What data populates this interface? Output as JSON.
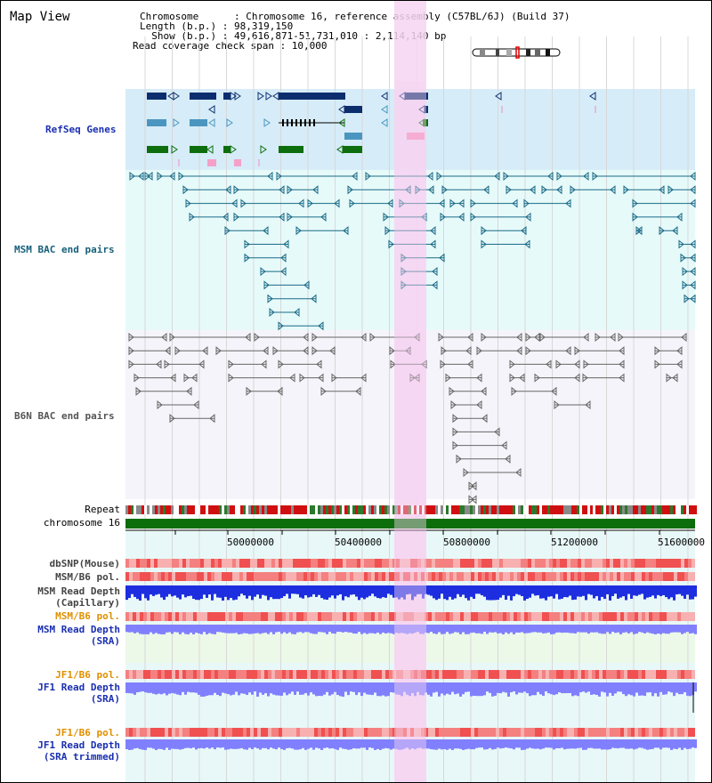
{
  "header": {
    "title": "Map View",
    "chromosome_line": "Chromosome      : Chromosome 16, reference assembly (C57BL/6J) (Build 37)",
    "length_line": "Length (b.p.) : 98,319,150",
    "show_line": "  Show (b.p.) : 49,616,871-51,731,010 : 2,114,140 bp",
    "coverage_line": "Read coverage check span : 10,000"
  },
  "tracks": {
    "refseq": "RefSeq Genes",
    "msm_bac": "MSM BAC end pairs",
    "b6n_bac": "B6N BAC end pairs",
    "repeat": "Repeat",
    "chromosome": "chromosome 16",
    "dbsnp": "dbSNP(Mouse)",
    "msm_b6_pol_1": "MSM/B6 pol.",
    "msm_read_depth_cap_1": "MSM Read Depth",
    "msm_read_depth_cap_2": "(Capillary)",
    "msm_b6_pol_2": "MSM/B6 pol.",
    "msm_read_depth_sra_1": "MSM Read Depth",
    "msm_read_depth_sra_2": "(SRA)",
    "jf1_b6_pol_1": "JF1/B6 pol.",
    "jf1_read_depth_sra_1": "JF1 Read Depth",
    "jf1_read_depth_sra_2": "(SRA)",
    "jf1_b6_pol_2": "JF1/B6 pol.",
    "jf1_read_depth_trim_1": "JF1 Read Depth",
    "jf1_read_depth_trim_2": "(SRA trimmed)"
  },
  "axis": {
    "ticks": [
      "50000000",
      "50400000",
      "50800000",
      "51200000",
      "51600000"
    ]
  },
  "colors": {
    "refseq_bg": "#d6ecf8",
    "msm_bg": "#e6fafa",
    "highlight": "#f6d4f2",
    "gene_navy": "#0c2e6e",
    "gene_steel": "#4a96c0",
    "gene_green": "#0d6e0d",
    "gene_pink": "#f4a0c8",
    "bac_teal": "#1a6a86",
    "bac_gray": "#666666",
    "label_blue": "#1a2fb0",
    "label_teal": "#17607a",
    "label_orange": "#e09000",
    "depth_blue": "#1d2ee0",
    "depth_light": "#8080ff"
  }
}
